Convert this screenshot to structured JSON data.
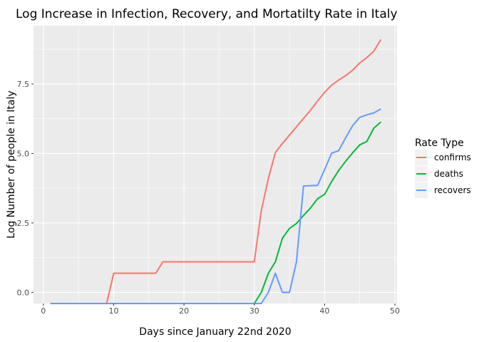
{
  "chart_data": {
    "type": "line",
    "title": "Log Increase in Infection, Recovery, and Mortatilty Rate in Italy",
    "xlabel": "Days since January 22nd 2020",
    "ylabel": "Log Number of people in Italy",
    "xlim": [
      -1.4,
      50.3
    ],
    "ylim": [
      -0.4,
      9.6
    ],
    "x_ticks": [
      0,
      10,
      20,
      30,
      40,
      50
    ],
    "y_ticks": [
      0.0,
      2.5,
      5.0,
      7.5
    ],
    "y_tick_labels": [
      "0.0",
      "2.5",
      "5.0",
      "7.5"
    ],
    "grid": true,
    "legend": {
      "title": "Rate Type",
      "position": "right"
    },
    "series": [
      {
        "name": "confirms",
        "color": "#F8766D",
        "x": [
          1,
          2,
          3,
          4,
          5,
          6,
          7,
          8,
          9,
          10,
          11,
          12,
          13,
          14,
          15,
          16,
          17,
          18,
          19,
          20,
          21,
          22,
          23,
          24,
          25,
          26,
          27,
          28,
          29,
          30,
          31,
          32,
          33,
          34,
          35,
          36,
          37,
          38,
          39,
          40,
          41,
          42,
          43,
          44,
          45,
          46,
          47,
          48
        ],
        "y": [
          -0.4,
          -0.4,
          -0.4,
          -0.4,
          -0.4,
          -0.4,
          -0.4,
          -0.4,
          -0.4,
          0.69,
          0.69,
          0.69,
          0.69,
          0.69,
          0.69,
          0.69,
          1.1,
          1.1,
          1.1,
          1.1,
          1.1,
          1.1,
          1.1,
          1.1,
          1.1,
          1.1,
          1.1,
          1.1,
          1.1,
          1.1,
          2.94,
          4.1,
          5.03,
          5.36,
          5.66,
          5.96,
          6.26,
          6.56,
          6.89,
          7.2,
          7.46,
          7.64,
          7.8,
          8.0,
          8.26,
          8.45,
          8.68,
          9.1
        ]
      },
      {
        "name": "deaths",
        "color": "#00BA38",
        "x": [
          30,
          31,
          32,
          33,
          34,
          35,
          36,
          37,
          38,
          39,
          40,
          41,
          42,
          43,
          44,
          45,
          46,
          47,
          48
        ],
        "y": [
          -0.4,
          0.0,
          0.69,
          1.1,
          1.95,
          2.3,
          2.48,
          2.77,
          3.04,
          3.37,
          3.53,
          3.99,
          4.39,
          4.72,
          5.03,
          5.31,
          5.43,
          5.91,
          6.13
        ]
      },
      {
        "name": "recovers",
        "color": "#619CFF",
        "x": [
          1,
          2,
          3,
          4,
          5,
          6,
          7,
          8,
          9,
          10,
          11,
          12,
          13,
          14,
          15,
          16,
          17,
          18,
          19,
          20,
          21,
          22,
          23,
          24,
          25,
          26,
          27,
          28,
          29,
          30,
          31,
          32,
          33,
          34,
          35,
          36,
          37,
          38,
          39,
          40,
          41,
          42,
          43,
          44,
          45,
          46,
          47,
          48
        ],
        "y": [
          -0.4,
          -0.4,
          -0.4,
          -0.4,
          -0.4,
          -0.4,
          -0.4,
          -0.4,
          -0.4,
          -0.4,
          -0.4,
          -0.4,
          -0.4,
          -0.4,
          -0.4,
          -0.4,
          -0.4,
          -0.4,
          -0.4,
          -0.4,
          -0.4,
          -0.4,
          -0.4,
          -0.4,
          -0.4,
          -0.4,
          -0.4,
          -0.4,
          -0.4,
          -0.4,
          -0.4,
          0.0,
          0.69,
          0.0,
          0.0,
          1.1,
          3.83,
          3.84,
          3.85,
          4.42,
          5.01,
          5.1,
          5.57,
          6.01,
          6.3,
          6.39,
          6.46,
          6.6
        ]
      }
    ]
  }
}
